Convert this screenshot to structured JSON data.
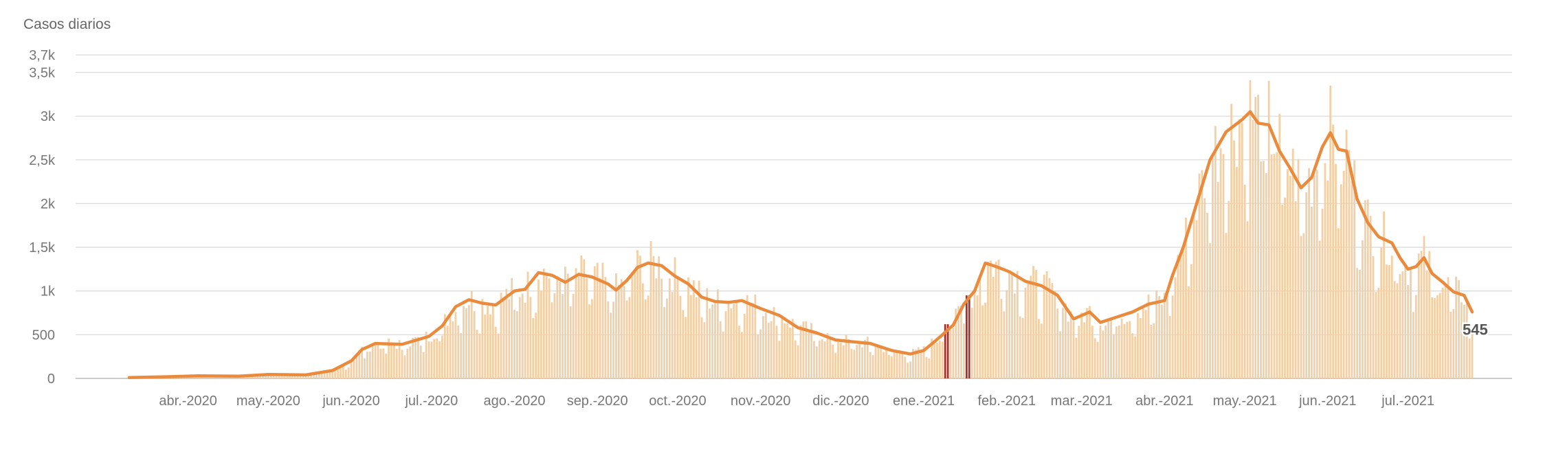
{
  "chart_data": {
    "type": "bar",
    "ylabel": "Casos diarios",
    "ylim": [
      0,
      3700
    ],
    "yticks": [
      {
        "value": 0,
        "label": "0"
      },
      {
        "value": 500,
        "label": "500"
      },
      {
        "value": 1000,
        "label": "1k"
      },
      {
        "value": 1500,
        "label": "1,5k"
      },
      {
        "value": 2000,
        "label": "2k"
      },
      {
        "value": 2500,
        "label": "2,5k"
      },
      {
        "value": 3000,
        "label": "3k"
      },
      {
        "value": 3500,
        "label": "3,5k"
      },
      {
        "value": 3700,
        "label": "3,7k"
      }
    ],
    "xticks": [
      {
        "date": "2020-04-01",
        "label": "abr.-2020"
      },
      {
        "date": "2020-05-01",
        "label": "may.-2020"
      },
      {
        "date": "2020-06-01",
        "label": "jun.-2020"
      },
      {
        "date": "2020-07-01",
        "label": "jul.-2020"
      },
      {
        "date": "2020-08-01",
        "label": "ago.-2020"
      },
      {
        "date": "2020-09-01",
        "label": "sep.-2020"
      },
      {
        "date": "2020-10-01",
        "label": "oct.-2020"
      },
      {
        "date": "2020-11-01",
        "label": "nov.-2020"
      },
      {
        "date": "2020-12-01",
        "label": "dic.-2020"
      },
      {
        "date": "2021-01-01",
        "label": "ene.-2021"
      },
      {
        "date": "2021-02-01",
        "label": "feb.-2021"
      },
      {
        "date": "2021-03-01",
        "label": "mar.-2021"
      },
      {
        "date": "2021-04-01",
        "label": "abr.-2021"
      },
      {
        "date": "2021-05-01",
        "label": "may.-2021"
      },
      {
        "date": "2021-06-01",
        "label": "jun.-2021"
      },
      {
        "date": "2021-07-01",
        "label": "jul.-2021"
      }
    ],
    "x_start": "2020-03-10",
    "x_end": "2021-07-25",
    "series": [
      {
        "type": "bar",
        "points": [
          [
            "2020-03-10",
            10
          ],
          [
            "2020-03-25",
            20
          ],
          [
            "2020-04-05",
            30
          ],
          [
            "2020-04-20",
            25
          ],
          [
            "2020-05-01",
            45
          ],
          [
            "2020-05-15",
            40
          ],
          [
            "2020-05-25",
            90
          ],
          [
            "2020-06-01",
            200
          ],
          [
            "2020-06-05",
            330
          ],
          [
            "2020-06-10",
            400
          ],
          [
            "2020-06-20",
            390
          ],
          [
            "2020-06-30",
            480
          ],
          [
            "2020-07-05",
            600
          ],
          [
            "2020-07-10",
            820
          ],
          [
            "2020-07-15",
            900
          ],
          [
            "2020-07-20",
            860
          ],
          [
            "2020-07-25",
            840
          ],
          [
            "2020-08-01",
            1000
          ],
          [
            "2020-08-05",
            1020
          ],
          [
            "2020-08-10",
            1210
          ],
          [
            "2020-08-15",
            1180
          ],
          [
            "2020-08-20",
            1100
          ],
          [
            "2020-08-25",
            1190
          ],
          [
            "2020-08-30",
            1160
          ],
          [
            "2020-09-05",
            1080
          ],
          [
            "2020-09-08",
            1010
          ],
          [
            "2020-09-12",
            1120
          ],
          [
            "2020-09-16",
            1270
          ],
          [
            "2020-09-20",
            1320
          ],
          [
            "2020-09-25",
            1290
          ],
          [
            "2020-09-30",
            1170
          ],
          [
            "2020-10-05",
            1080
          ],
          [
            "2020-10-10",
            930
          ],
          [
            "2020-10-15",
            880
          ],
          [
            "2020-10-20",
            870
          ],
          [
            "2020-10-25",
            890
          ],
          [
            "2020-11-01",
            800
          ],
          [
            "2020-11-08",
            720
          ],
          [
            "2020-11-15",
            580
          ],
          [
            "2020-11-22",
            520
          ],
          [
            "2020-11-29",
            440
          ],
          [
            "2020-12-05",
            420
          ],
          [
            "2020-12-12",
            400
          ],
          [
            "2020-12-20",
            320
          ],
          [
            "2020-12-27",
            280
          ],
          [
            "2021-01-01",
            320
          ],
          [
            "2021-01-05",
            420
          ],
          [
            "2021-01-08",
            500
          ],
          [
            "2021-01-12",
            610
          ],
          [
            "2021-01-16",
            850
          ],
          [
            "2021-01-20",
            1000
          ],
          [
            "2021-01-24",
            1320
          ],
          [
            "2021-01-28",
            1280
          ],
          [
            "2021-02-02",
            1220
          ],
          [
            "2021-02-08",
            1110
          ],
          [
            "2021-02-14",
            1060
          ],
          [
            "2021-02-20",
            950
          ],
          [
            "2021-02-26",
            680
          ],
          [
            "2021-03-04",
            760
          ],
          [
            "2021-03-08",
            640
          ],
          [
            "2021-03-14",
            700
          ],
          [
            "2021-03-20",
            760
          ],
          [
            "2021-03-26",
            850
          ],
          [
            "2021-04-01",
            890
          ],
          [
            "2021-04-04",
            1180
          ],
          [
            "2021-04-08",
            1500
          ],
          [
            "2021-04-12",
            1900
          ],
          [
            "2021-04-18",
            2500
          ],
          [
            "2021-04-24",
            2820
          ],
          [
            "2021-04-30",
            2960
          ],
          [
            "2021-05-03",
            3050
          ],
          [
            "2021-05-06",
            2920
          ],
          [
            "2021-05-10",
            2900
          ],
          [
            "2021-05-14",
            2600
          ],
          [
            "2021-05-18",
            2400
          ],
          [
            "2021-05-22",
            2180
          ],
          [
            "2021-05-26",
            2300
          ],
          [
            "2021-05-30",
            2650
          ],
          [
            "2021-06-02",
            2810
          ],
          [
            "2021-06-05",
            2620
          ],
          [
            "2021-06-08",
            2600
          ],
          [
            "2021-06-12",
            2050
          ],
          [
            "2021-06-16",
            1780
          ],
          [
            "2021-06-20",
            1620
          ],
          [
            "2021-06-25",
            1550
          ],
          [
            "2021-06-28",
            1380
          ],
          [
            "2021-07-01",
            1250
          ],
          [
            "2021-07-04",
            1280
          ],
          [
            "2021-07-07",
            1380
          ],
          [
            "2021-07-10",
            1200
          ],
          [
            "2021-07-14",
            1100
          ],
          [
            "2021-07-18",
            990
          ],
          [
            "2021-07-22",
            950
          ],
          [
            "2021-07-25",
            545
          ]
        ]
      },
      {
        "type": "line",
        "points": [
          [
            "2020-03-10",
            10
          ],
          [
            "2020-03-25",
            20
          ],
          [
            "2020-04-05",
            30
          ],
          [
            "2020-04-20",
            25
          ],
          [
            "2020-05-01",
            45
          ],
          [
            "2020-05-15",
            40
          ],
          [
            "2020-05-25",
            90
          ],
          [
            "2020-06-01",
            200
          ],
          [
            "2020-06-05",
            330
          ],
          [
            "2020-06-10",
            400
          ],
          [
            "2020-06-20",
            390
          ],
          [
            "2020-06-30",
            480
          ],
          [
            "2020-07-05",
            600
          ],
          [
            "2020-07-10",
            820
          ],
          [
            "2020-07-15",
            900
          ],
          [
            "2020-07-20",
            860
          ],
          [
            "2020-07-25",
            840
          ],
          [
            "2020-08-01",
            1000
          ],
          [
            "2020-08-05",
            1020
          ],
          [
            "2020-08-10",
            1210
          ],
          [
            "2020-08-15",
            1180
          ],
          [
            "2020-08-20",
            1100
          ],
          [
            "2020-08-25",
            1190
          ],
          [
            "2020-08-30",
            1160
          ],
          [
            "2020-09-05",
            1080
          ],
          [
            "2020-09-08",
            1010
          ],
          [
            "2020-09-12",
            1120
          ],
          [
            "2020-09-16",
            1270
          ],
          [
            "2020-09-20",
            1320
          ],
          [
            "2020-09-25",
            1290
          ],
          [
            "2020-09-30",
            1170
          ],
          [
            "2020-10-05",
            1080
          ],
          [
            "2020-10-10",
            930
          ],
          [
            "2020-10-15",
            880
          ],
          [
            "2020-10-20",
            870
          ],
          [
            "2020-10-25",
            890
          ],
          [
            "2020-11-01",
            800
          ],
          [
            "2020-11-08",
            720
          ],
          [
            "2020-11-15",
            580
          ],
          [
            "2020-11-22",
            520
          ],
          [
            "2020-11-29",
            440
          ],
          [
            "2020-12-05",
            420
          ],
          [
            "2020-12-12",
            400
          ],
          [
            "2020-12-20",
            320
          ],
          [
            "2020-12-27",
            280
          ],
          [
            "2021-01-01",
            320
          ],
          [
            "2021-01-05",
            420
          ],
          [
            "2021-01-08",
            500
          ],
          [
            "2021-01-12",
            610
          ],
          [
            "2021-01-16",
            850
          ],
          [
            "2021-01-20",
            1000
          ],
          [
            "2021-01-24",
            1320
          ],
          [
            "2021-01-28",
            1280
          ],
          [
            "2021-02-02",
            1220
          ],
          [
            "2021-02-08",
            1110
          ],
          [
            "2021-02-14",
            1060
          ],
          [
            "2021-02-20",
            950
          ],
          [
            "2021-02-26",
            680
          ],
          [
            "2021-03-04",
            760
          ],
          [
            "2021-03-08",
            640
          ],
          [
            "2021-03-14",
            700
          ],
          [
            "2021-03-20",
            760
          ],
          [
            "2021-03-26",
            850
          ],
          [
            "2021-04-01",
            890
          ],
          [
            "2021-04-04",
            1180
          ],
          [
            "2021-04-08",
            1500
          ],
          [
            "2021-04-12",
            1900
          ],
          [
            "2021-04-18",
            2500
          ],
          [
            "2021-04-24",
            2820
          ],
          [
            "2021-04-30",
            2960
          ],
          [
            "2021-05-03",
            3050
          ],
          [
            "2021-05-06",
            2920
          ],
          [
            "2021-05-10",
            2900
          ],
          [
            "2021-05-14",
            2600
          ],
          [
            "2021-05-18",
            2400
          ],
          [
            "2021-05-22",
            2180
          ],
          [
            "2021-05-26",
            2300
          ],
          [
            "2021-05-30",
            2650
          ],
          [
            "2021-06-02",
            2810
          ],
          [
            "2021-06-05",
            2620
          ],
          [
            "2021-06-08",
            2600
          ],
          [
            "2021-06-12",
            2050
          ],
          [
            "2021-06-16",
            1780
          ],
          [
            "2021-06-20",
            1620
          ],
          [
            "2021-06-25",
            1550
          ],
          [
            "2021-06-28",
            1380
          ],
          [
            "2021-07-01",
            1250
          ],
          [
            "2021-07-04",
            1280
          ],
          [
            "2021-07-07",
            1380
          ],
          [
            "2021-07-10",
            1200
          ],
          [
            "2021-07-14",
            1100
          ],
          [
            "2021-07-18",
            990
          ],
          [
            "2021-07-22",
            950
          ],
          [
            "2021-07-25",
            760
          ]
        ]
      }
    ],
    "highlighted_bars": [
      {
        "date": "2021-01-09",
        "value": 620
      },
      {
        "date": "2021-01-10",
        "value": 620
      },
      {
        "date": "2021-01-17",
        "value": 950
      },
      {
        "date": "2021-01-18",
        "value": 950
      }
    ],
    "last_value_label": "545",
    "colors": {
      "bars": "#f3cfa6",
      "highlight": "#a3322b",
      "average": "#ea8a3c"
    },
    "grid": true
  }
}
